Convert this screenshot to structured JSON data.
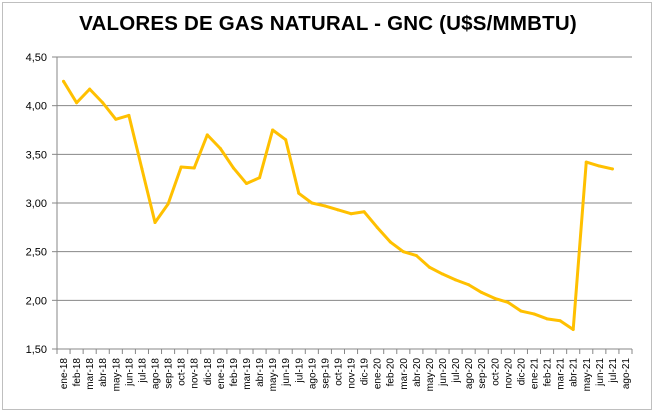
{
  "chart_data": {
    "type": "line",
    "title": "VALORES DE GAS NATURAL - GNC (U$S/MMBTU)",
    "xlabel": "",
    "ylabel": "",
    "ylim": [
      1.5,
      4.5
    ],
    "yticks": [
      1.5,
      2.0,
      2.5,
      3.0,
      3.5,
      4.0,
      4.5
    ],
    "ytick_labels": [
      "1,50",
      "2,00",
      "2,50",
      "3,00",
      "3,50",
      "4,00",
      "4,50"
    ],
    "grid": "horizontal",
    "legend": "none",
    "line_color": "#FFC000",
    "categories": [
      "ene-18",
      "feb-18",
      "mar-18",
      "abr-18",
      "may-18",
      "jun-18",
      "jul-18",
      "ago-18",
      "sep-18",
      "oct-18",
      "nov-18",
      "dic-18",
      "ene-19",
      "feb-19",
      "mar-19",
      "abr-19",
      "may-19",
      "jun-19",
      "jul-19",
      "ago-19",
      "sep-19",
      "oct-19",
      "nov-19",
      "dic-19",
      "ene-20",
      "feb-20",
      "mar-20",
      "abr-20",
      "may-20",
      "jun-20",
      "jul-20",
      "ago-20",
      "sep-20",
      "oct-20",
      "nov-20",
      "dic-20",
      "ene-21",
      "feb-21",
      "mar-21",
      "abr-21",
      "may-21",
      "jun-21",
      "jul-21",
      "ago-21"
    ],
    "values": [
      4.25,
      4.03,
      4.17,
      4.03,
      3.86,
      3.9,
      3.35,
      2.8,
      2.99,
      3.37,
      3.36,
      3.7,
      3.56,
      3.36,
      3.2,
      3.26,
      3.75,
      3.65,
      3.1,
      3.0,
      2.97,
      2.93,
      2.89,
      2.91,
      2.75,
      2.6,
      2.5,
      2.46,
      2.34,
      2.27,
      2.21,
      2.16,
      2.08,
      2.02,
      1.98,
      1.89,
      1.86,
      1.81,
      1.79,
      1.7,
      3.42,
      3.38,
      3.35,
      null
    ]
  }
}
